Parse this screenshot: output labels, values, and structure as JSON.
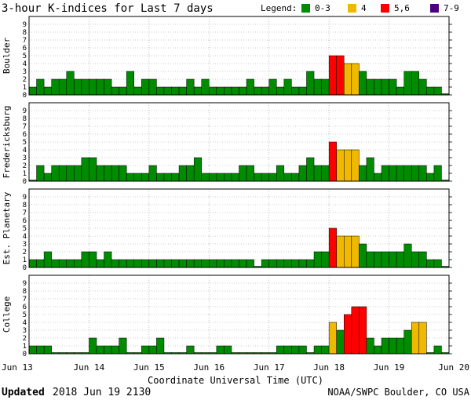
{
  "title": "3-hour K-indices for Last 7 days",
  "legend": {
    "label": "Legend:",
    "items": [
      {
        "label": "0-3",
        "color": "#008C00"
      },
      {
        "label": "4",
        "color": "#F0B800"
      },
      {
        "label": "5,6",
        "color": "#FF0000"
      },
      {
        "label": "7-9",
        "color": "#4B0082"
      }
    ]
  },
  "xlabel": "Coordinate Universal Time (UTC)",
  "x_ticks": [
    "Jun 13",
    "Jun 14",
    "Jun 15",
    "Jun 16",
    "Jun 17",
    "Jun 18",
    "Jun 19",
    "Jun 20"
  ],
  "y_ticks": [
    "0",
    "1",
    "2",
    "3",
    "4",
    "5",
    "6",
    "7",
    "8",
    "9"
  ],
  "footer": {
    "updated_label": "Updated",
    "updated_value": "2018 Jun 19 2130",
    "credit": "NOAA/SWPC Boulder, CO USA"
  },
  "chart_data": [
    {
      "type": "bar",
      "ylabel": "Boulder",
      "ylim": [
        0,
        9
      ],
      "values": [
        1,
        2,
        1,
        2,
        2,
        3,
        2,
        2,
        2,
        2,
        2,
        1,
        1,
        3,
        1,
        2,
        2,
        1,
        1,
        1,
        1,
        2,
        1,
        2,
        1,
        1,
        1,
        1,
        1,
        2,
        1,
        1,
        2,
        1,
        2,
        1,
        1,
        3,
        2,
        2,
        5,
        5,
        4,
        4,
        3,
        2,
        2,
        2,
        2,
        1,
        3,
        3,
        2,
        1,
        1,
        0
      ]
    },
    {
      "type": "bar",
      "ylabel": "Fredericksburg",
      "ylim": [
        0,
        9
      ],
      "values": [
        0,
        2,
        1,
        2,
        2,
        2,
        2,
        3,
        3,
        2,
        2,
        2,
        2,
        1,
        1,
        1,
        2,
        1,
        1,
        1,
        2,
        2,
        3,
        1,
        1,
        1,
        1,
        1,
        2,
        2,
        1,
        1,
        1,
        2,
        1,
        1,
        2,
        3,
        2,
        2,
        5,
        4,
        4,
        4,
        2,
        3,
        1,
        2,
        2,
        2,
        2,
        2,
        2,
        1,
        2,
        0
      ]
    },
    {
      "type": "bar",
      "ylabel": "Est. Planetary",
      "ylim": [
        0,
        9
      ],
      "values": [
        1,
        1,
        2,
        1,
        1,
        1,
        1,
        2,
        2,
        1,
        2,
        1,
        1,
        1,
        1,
        1,
        1,
        1,
        1,
        1,
        1,
        1,
        1,
        1,
        1,
        1,
        1,
        1,
        1,
        1,
        0,
        1,
        1,
        1,
        1,
        1,
        1,
        1,
        2,
        2,
        5,
        4,
        4,
        4,
        3,
        2,
        2,
        2,
        2,
        2,
        3,
        2,
        2,
        1,
        1,
        0
      ]
    },
    {
      "type": "bar",
      "ylabel": "College",
      "ylim": [
        0,
        9
      ],
      "values": [
        1,
        1,
        1,
        0,
        0,
        0,
        0,
        0,
        2,
        1,
        1,
        1,
        2,
        0,
        0,
        1,
        1,
        2,
        0,
        0,
        0,
        1,
        0,
        0,
        0,
        1,
        1,
        0,
        0,
        0,
        0,
        0,
        0,
        1,
        1,
        1,
        1,
        0,
        1,
        1,
        4,
        3,
        5,
        6,
        6,
        2,
        1,
        2,
        2,
        2,
        3,
        4,
        4,
        0,
        1,
        0
      ]
    }
  ]
}
